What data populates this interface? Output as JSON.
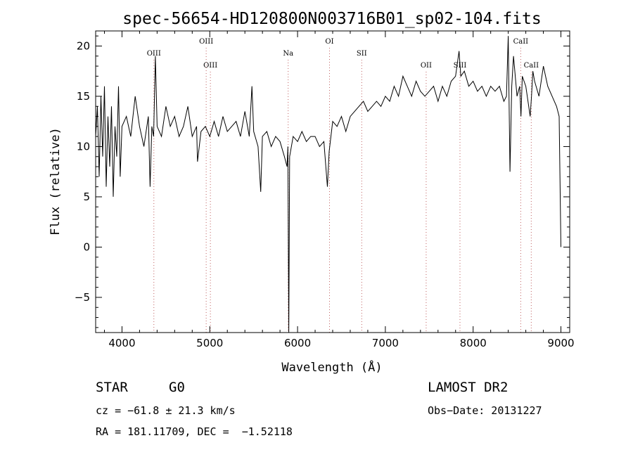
{
  "chart_data": {
    "type": "line",
    "title": "spec-56654-HD120800N003716B01_sp02-104.fits",
    "xlabel": "Wavelength (Å)",
    "ylabel": "Flux (relative)",
    "xlim": [
      3700,
      9100
    ],
    "ylim": [
      -8.5,
      21.5
    ],
    "xticks": [
      4000,
      5000,
      6000,
      7000,
      8000,
      9000
    ],
    "yticks": [
      -5,
      0,
      5,
      10,
      15,
      20
    ],
    "grid": false,
    "line_color": "#000000",
    "marker_color": "#c06060",
    "spectral_lines": [
      {
        "name": "OIII",
        "x": 4363,
        "row": 2
      },
      {
        "name": "OIII",
        "x": 4959,
        "row": 1
      },
      {
        "name": "OIII",
        "x": 5007,
        "row": 3
      },
      {
        "name": "Na",
        "x": 5893,
        "row": 2
      },
      {
        "name": "OI",
        "x": 6364,
        "row": 1
      },
      {
        "name": "SII",
        "x": 6731,
        "row": 2
      },
      {
        "name": "OII",
        "x": 7465,
        "row": 3
      },
      {
        "name": "SIII",
        "x": 7850,
        "row": 3
      },
      {
        "name": "CaII",
        "x": 8542,
        "row": 1
      },
      {
        "name": "CaII",
        "x": 8662,
        "row": 3
      }
    ],
    "series": [
      {
        "x": [
          3700,
          3720,
          3740,
          3760,
          3780,
          3800,
          3820,
          3840,
          3860,
          3880,
          3900,
          3920,
          3940,
          3960,
          3980,
          4000,
          4050,
          4100,
          4150,
          4200,
          4250,
          4300,
          4320,
          4340,
          4360,
          4380,
          4400,
          4450,
          4500,
          4550,
          4600,
          4650,
          4700,
          4750,
          4800,
          4850,
          4860,
          4900,
          4950,
          5000,
          5050,
          5100,
          5150,
          5200,
          5250,
          5300,
          5350,
          5400,
          5450,
          5480,
          5500,
          5550,
          5580,
          5600,
          5650,
          5700,
          5750,
          5800,
          5850,
          5880,
          5890,
          5900,
          5910,
          5930,
          5950,
          6000,
          6050,
          6100,
          6150,
          6200,
          6250,
          6300,
          6340,
          6360,
          6380,
          6400,
          6450,
          6500,
          6550,
          6600,
          6650,
          6700,
          6750,
          6800,
          6850,
          6900,
          6950,
          7000,
          7050,
          7100,
          7150,
          7200,
          7250,
          7300,
          7350,
          7400,
          7450,
          7500,
          7550,
          7600,
          7650,
          7700,
          7750,
          7800,
          7840,
          7860,
          7900,
          7950,
          8000,
          8050,
          8100,
          8150,
          8200,
          8250,
          8300,
          8350,
          8380,
          8400,
          8420,
          8440,
          8460,
          8500,
          8530,
          8545,
          8560,
          8600,
          8650,
          8665,
          8680,
          8700,
          8750,
          8800,
          8850,
          8900,
          8950,
          8980,
          9000
        ],
        "y": [
          11,
          14,
          7,
          15,
          9,
          16,
          6,
          13,
          8,
          14,
          5,
          12,
          9,
          16,
          7,
          12,
          13,
          11,
          15,
          12,
          10,
          13,
          6,
          12,
          11,
          19,
          12,
          11,
          14,
          12,
          13,
          11,
          12,
          14,
          11,
          12,
          8.5,
          11.5,
          12,
          11,
          12.5,
          11,
          13,
          11.5,
          12,
          12.5,
          11,
          13.5,
          11,
          16,
          11.5,
          10,
          5.5,
          11,
          11.5,
          10,
          11,
          10.5,
          9,
          8,
          10,
          -8.5,
          9,
          10,
          11,
          10.5,
          11.5,
          10.5,
          11,
          11,
          10,
          10.5,
          6,
          9.5,
          11,
          12.5,
          12,
          13,
          11.5,
          13,
          13.5,
          14,
          14.5,
          13.5,
          14,
          14.5,
          14,
          15,
          14.5,
          16,
          15,
          17,
          16,
          15,
          16.5,
          15.5,
          15,
          15.5,
          16,
          14.5,
          16,
          15,
          16.5,
          17,
          19.5,
          17,
          17.5,
          16,
          16.5,
          15.5,
          16,
          15,
          16,
          15.5,
          16,
          14.5,
          15,
          21,
          7.5,
          16,
          19,
          15,
          16,
          13,
          17,
          16,
          13,
          15,
          17.5,
          16.5,
          15,
          18,
          16,
          15,
          14,
          13,
          0
        ]
      }
    ]
  },
  "info": {
    "object_class": "STAR",
    "subclass": "G0",
    "survey": "LAMOST DR2",
    "cz": "cz = −61.8 ± 21.3 km/s",
    "obs_date": "Obs−Date: 20131227",
    "coords": "RA = 181.11709, DEC =  −1.52118"
  }
}
